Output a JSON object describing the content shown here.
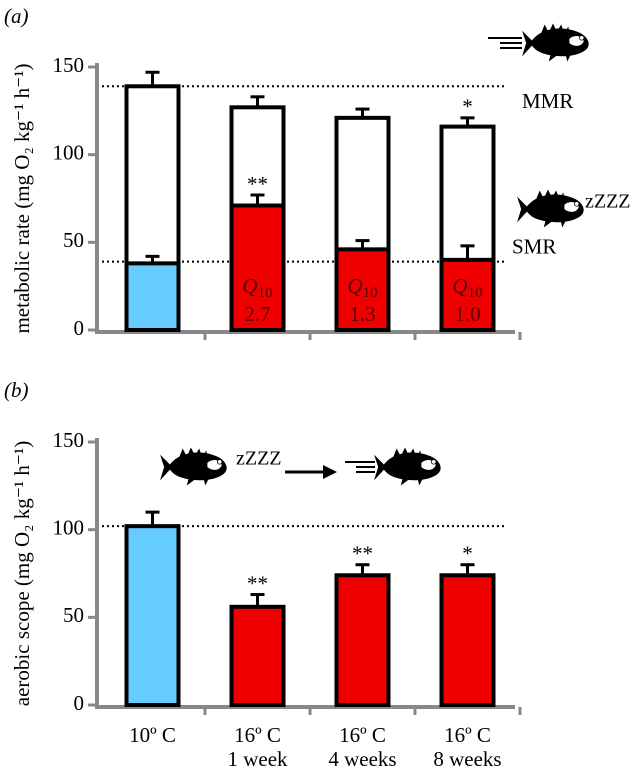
{
  "chart_data": [
    {
      "type": "bar",
      "panel_label": "(a)",
      "ylabel": "metabolic rate (mg O₂ kg⁻¹ h⁻¹)",
      "ylim": [
        0,
        150
      ],
      "yticks": [
        0,
        50,
        100,
        150
      ],
      "series": [
        {
          "color": "#ffffff",
          "values": [
            139,
            127,
            121,
            116
          ],
          "errors": [
            8,
            6,
            5,
            5
          ],
          "significance": [
            null,
            null,
            null,
            "*"
          ]
        },
        {
          "colors": [
            "#66ccff",
            "#ee0000",
            "#ee0000",
            "#ee0000"
          ],
          "values": [
            38,
            71,
            46,
            40
          ],
          "errors": [
            4,
            6,
            5,
            8
          ],
          "significance": [
            null,
            "**",
            null,
            null
          ]
        }
      ],
      "reference_lines": [
        {
          "label": "MMR",
          "value": 139
        },
        {
          "label": "SMR",
          "value": 39
        }
      ],
      "q10_symbol": "Q",
      "q10_subscript": "10",
      "q10_values": [
        null,
        "2.7",
        "1.3",
        "1.0"
      ],
      "sleep_label": "zZZZ"
    },
    {
      "type": "bar",
      "panel_label": "(b)",
      "ylabel": "aerobic scope (mg O₂ kg⁻¹ h⁻¹)",
      "ylim": [
        0,
        150
      ],
      "yticks": [
        0,
        50,
        100,
        150
      ],
      "categories": [
        [
          "10º C"
        ],
        [
          "16º C",
          "1 week"
        ],
        [
          "16º C",
          "4 weeks"
        ],
        [
          "16º C",
          "8 weeks"
        ]
      ],
      "series": [
        {
          "colors": [
            "#66ccff",
            "#ee0000",
            "#ee0000",
            "#ee0000"
          ],
          "values": [
            102,
            56,
            74,
            74
          ],
          "errors": [
            8,
            7,
            6,
            6
          ],
          "significance": [
            null,
            "**",
            "**",
            "*"
          ]
        }
      ],
      "reference_lines": [
        {
          "value": 102
        }
      ],
      "sleep_label": "zZZZ"
    }
  ]
}
